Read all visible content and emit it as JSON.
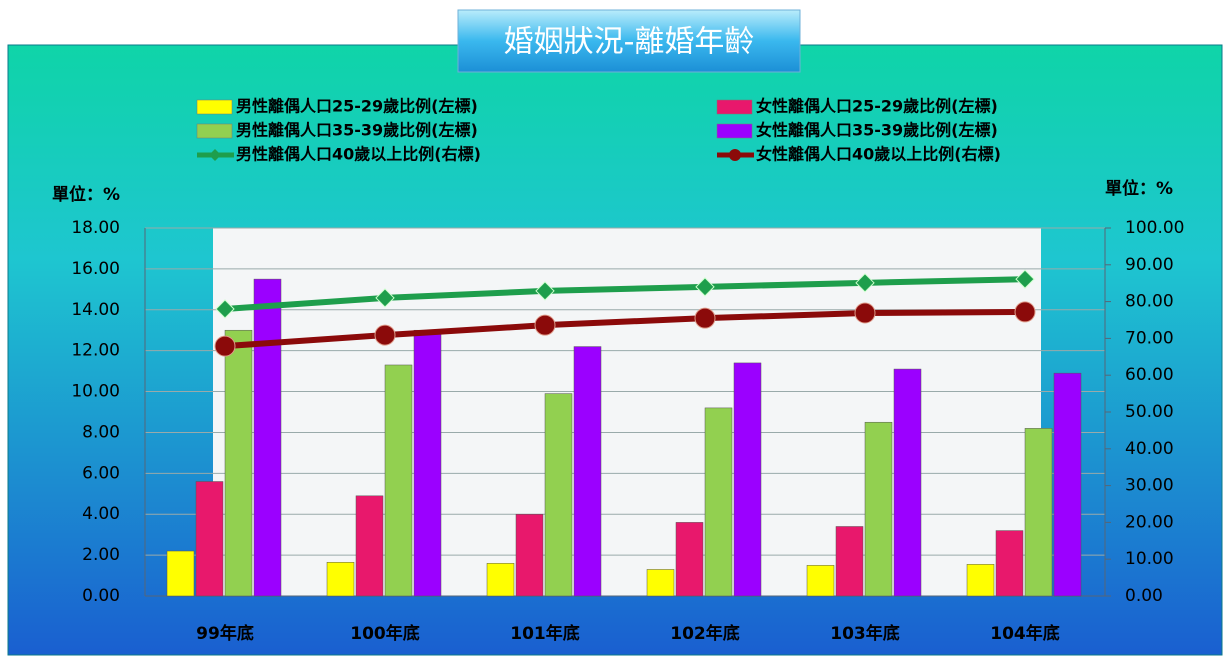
{
  "chart_data": {
    "type": "bar",
    "title": "婚姻狀況-離婚年齡",
    "y_unit": "單位：%",
    "y2_unit": "單位：%",
    "categories": [
      "99年底",
      "100年底",
      "101年底",
      "102年底",
      "103年底",
      "104年底"
    ],
    "ylim": [
      0,
      18
    ],
    "yticks": [
      {
        "value": 0,
        "label": "0.00"
      },
      {
        "value": 2,
        "label": "2.00"
      },
      {
        "value": 4,
        "label": "4.00"
      },
      {
        "value": 6,
        "label": "6.00"
      },
      {
        "value": 8,
        "label": "8.00"
      },
      {
        "value": 10,
        "label": "10.00"
      },
      {
        "value": 12,
        "label": "12.00"
      },
      {
        "value": 14,
        "label": "14.00"
      },
      {
        "value": 16,
        "label": "16.00"
      },
      {
        "value": 18,
        "label": "18.00"
      }
    ],
    "y2lim": [
      0,
      100
    ],
    "y2ticks": [
      {
        "value": 0,
        "label": "0.00"
      },
      {
        "value": 10,
        "label": "10.00"
      },
      {
        "value": 20,
        "label": "20.00"
      },
      {
        "value": 30,
        "label": "30.00"
      },
      {
        "value": 40,
        "label": "40.00"
      },
      {
        "value": 50,
        "label": "50.00"
      },
      {
        "value": 60,
        "label": "60.00"
      },
      {
        "value": 70,
        "label": "70.00"
      },
      {
        "value": 80,
        "label": "80.00"
      },
      {
        "value": 90,
        "label": "90.00"
      },
      {
        "value": 100,
        "label": "100.00"
      }
    ],
    "grid": true,
    "series": [
      {
        "name": "男性離偶人口25-29歲比例(左標)",
        "type": "bar",
        "color": "#ffff00",
        "values": [
          2.2,
          1.65,
          1.6,
          1.3,
          1.5,
          1.55
        ]
      },
      {
        "name": "女性離偶人口25-29歲比例(左標)",
        "type": "bar",
        "color": "#e8186c",
        "values": [
          5.6,
          4.9,
          4.0,
          3.6,
          3.4,
          3.2
        ]
      },
      {
        "name": "男性離偶人口35-39歲比例(左標)",
        "type": "bar",
        "color": "#92d050",
        "values": [
          13.0,
          11.3,
          9.9,
          9.2,
          8.5,
          8.2
        ]
      },
      {
        "name": "女性離偶人口35-39歲比例(左標)",
        "type": "bar",
        "color": "#9b00ff",
        "values": [
          15.5,
          13.0,
          12.2,
          11.4,
          11.1,
          10.9
        ]
      },
      {
        "name": "男性離偶人口40歲以上比例(右標)",
        "type": "line",
        "axis": "y2",
        "color": "#1e9e4c",
        "marker": "diamond",
        "values": [
          78.0,
          81.0,
          82.9,
          84.0,
          85.1,
          86.1
        ]
      },
      {
        "name": "女性離偶人口40歲以上比例(右標)",
        "type": "line",
        "axis": "y2",
        "color": "#8b0a0a",
        "marker": "circle",
        "values": [
          67.9,
          70.9,
          73.6,
          75.5,
          76.9,
          77.2
        ]
      }
    ]
  }
}
